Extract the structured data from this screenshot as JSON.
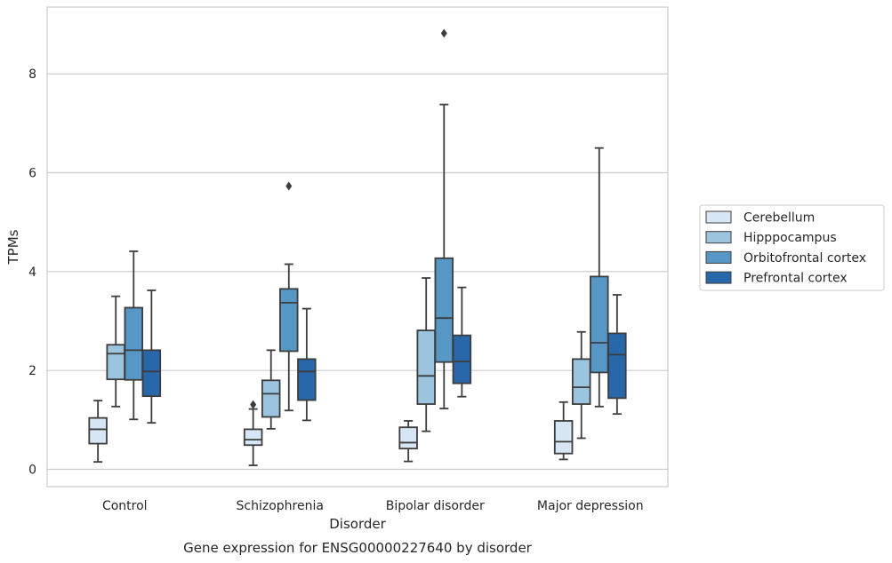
{
  "chart_data": {
    "type": "box",
    "caption": "Gene expression for ENSG00000227640 by disorder",
    "xlabel": "Disorder",
    "ylabel": "TPMs",
    "ylim": [
      -0.35,
      9.35
    ],
    "yticks": [
      0,
      2,
      4,
      6,
      8
    ],
    "grid": true,
    "legend_position": "center-right",
    "categories": [
      "Control",
      "Schizophrenia",
      "Bipolar disorder",
      "Major depression"
    ],
    "series": [
      {
        "name": "Cerebellum",
        "color": "#d6e6f4",
        "boxes": [
          {
            "whisker_low": 0.15,
            "q1": 0.52,
            "median": 0.81,
            "q3": 1.04,
            "whisker_high": 1.39,
            "outliers": []
          },
          {
            "whisker_low": 0.08,
            "q1": 0.49,
            "median": 0.6,
            "q3": 0.81,
            "whisker_high": 1.22,
            "outliers": [
              1.31
            ]
          },
          {
            "whisker_low": 0.16,
            "q1": 0.42,
            "median": 0.54,
            "q3": 0.85,
            "whisker_high": 0.98,
            "outliers": []
          },
          {
            "whisker_low": 0.2,
            "q1": 0.32,
            "median": 0.56,
            "q3": 0.98,
            "whisker_high": 1.36,
            "outliers": []
          }
        ]
      },
      {
        "name": "Hipppocampus",
        "color": "#9bc5de",
        "boxes": [
          {
            "whisker_low": 1.27,
            "q1": 1.82,
            "median": 2.34,
            "q3": 2.52,
            "whisker_high": 3.5,
            "outliers": []
          },
          {
            "whisker_low": 0.82,
            "q1": 1.06,
            "median": 1.53,
            "q3": 1.8,
            "whisker_high": 2.41,
            "outliers": []
          },
          {
            "whisker_low": 0.77,
            "q1": 1.32,
            "median": 1.89,
            "q3": 2.81,
            "whisker_high": 3.87,
            "outliers": []
          },
          {
            "whisker_low": 0.63,
            "q1": 1.32,
            "median": 1.66,
            "q3": 2.23,
            "whisker_high": 2.78,
            "outliers": []
          }
        ]
      },
      {
        "name": "Orbitofrontal cortex",
        "color": "#5697c5",
        "boxes": [
          {
            "whisker_low": 1.01,
            "q1": 1.81,
            "median": 2.41,
            "q3": 3.27,
            "whisker_high": 4.41,
            "outliers": []
          },
          {
            "whisker_low": 1.19,
            "q1": 2.39,
            "median": 3.37,
            "q3": 3.65,
            "whisker_high": 4.15,
            "outliers": [
              5.73
            ]
          },
          {
            "whisker_low": 1.23,
            "q1": 2.17,
            "median": 3.06,
            "q3": 4.27,
            "whisker_high": 7.38,
            "outliers": [
              8.82
            ]
          },
          {
            "whisker_low": 1.27,
            "q1": 1.96,
            "median": 2.56,
            "q3": 3.9,
            "whisker_high": 6.5,
            "outliers": []
          }
        ]
      },
      {
        "name": "Prefrontal cortex",
        "color": "#2767aa",
        "boxes": [
          {
            "whisker_low": 0.94,
            "q1": 1.48,
            "median": 1.98,
            "q3": 2.41,
            "whisker_high": 3.62,
            "outliers": []
          },
          {
            "whisker_low": 0.99,
            "q1": 1.4,
            "median": 1.98,
            "q3": 2.23,
            "whisker_high": 3.25,
            "outliers": []
          },
          {
            "whisker_low": 1.47,
            "q1": 1.74,
            "median": 2.18,
            "q3": 2.71,
            "whisker_high": 3.68,
            "outliers": []
          },
          {
            "whisker_low": 1.12,
            "q1": 1.44,
            "median": 2.32,
            "q3": 2.75,
            "whisker_high": 3.53,
            "outliers": []
          }
        ]
      }
    ]
  }
}
